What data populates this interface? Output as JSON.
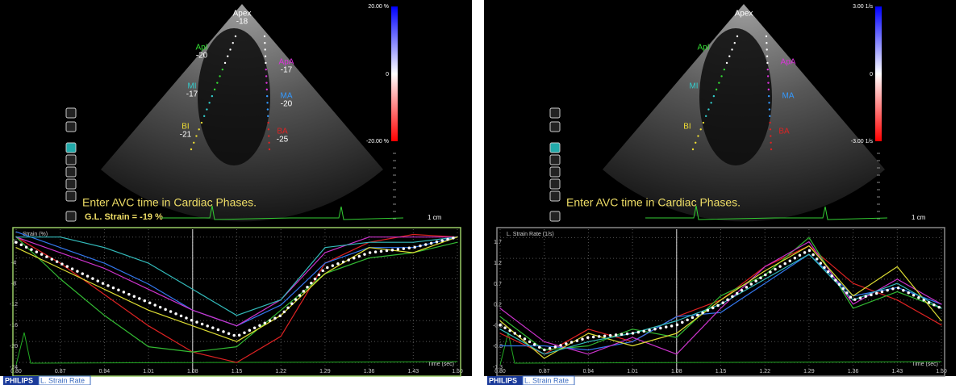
{
  "panels": [
    {
      "segments": [
        {
          "name": "Apex",
          "value": -18,
          "color": "#ffffff"
        },
        {
          "name": "ApI",
          "value": -20,
          "color": "#33dd33"
        },
        {
          "name": "ApA",
          "value": -17,
          "color": "#dd33dd"
        },
        {
          "name": "MI",
          "value": -17,
          "color": "#33cccc"
        },
        {
          "name": "MA",
          "value": -20,
          "color": "#3399ff"
        },
        {
          "name": "BI",
          "value": -21,
          "color": "#eedd33"
        },
        {
          "name": "BA",
          "value": -25,
          "color": "#dd2222"
        }
      ],
      "colorbar": {
        "max": "20.00 %",
        "mid": "0",
        "min": "-20.00 %"
      },
      "message": "Enter AVC time in Cardiac Phases.",
      "strain": "G.L. Strain = -19 %",
      "scale": "1 cm",
      "chart": {
        "type": "line",
        "y_label": "Strain (%)",
        "x_label": "Time (sec)",
        "frame": "#99cc66",
        "xlim": [
          0.8,
          1.5
        ],
        "ylim": [
          -26,
          1.5
        ],
        "xticks": [
          {
            "value": 0.8,
            "label": "0.80"
          },
          0.87,
          0.94,
          1.01,
          1.08,
          1.15,
          1.22,
          1.29,
          1.36,
          1.43,
          {
            "value": 1.5,
            "label": "1.50"
          }
        ],
        "yticks": [
          0,
          -4,
          -8,
          -12,
          -16,
          -20,
          -24
        ],
        "grid": true,
        "cursor": 1.08,
        "x": [
          0.8,
          0.87,
          0.94,
          1.01,
          1.08,
          1.15,
          1.22,
          1.29,
          1.36,
          1.43,
          1.5
        ],
        "series": [
          {
            "color": "#dd2222",
            "values": [
              0,
              -5,
              -11,
              -17,
              -22,
              -24,
              -19,
              -5,
              -1,
              0.5,
              0
            ]
          },
          {
            "color": "#33bb33",
            "values": [
              0,
              -8,
              -15,
              -21,
              -22,
              -21,
              -14,
              -7,
              -4,
              -3,
              -1
            ]
          },
          {
            "color": "#3377ee",
            "values": [
              1,
              -2,
              -5,
              -9,
              -14,
              -17,
              -13,
              -5,
              -2,
              -2,
              0
            ]
          },
          {
            "color": "#cc33cc",
            "values": [
              0,
              -3,
              -6,
              -10,
              -14,
              -17,
              -12,
              -3,
              0,
              0,
              0
            ]
          },
          {
            "color": "#33bbbb",
            "values": [
              0,
              0,
              -2,
              -5,
              -10,
              -15,
              -12,
              -2,
              -1,
              -1,
              0
            ]
          },
          {
            "color": "#dddd33",
            "values": [
              -2,
              -6,
              -10,
              -14,
              -17,
              -20,
              -15,
              -7,
              -2,
              -3,
              0
            ]
          },
          {
            "color": "#ffffff",
            "style": "dotted",
            "values": [
              -1,
              -5,
              -9,
              -12.5,
              -16,
              -19,
              -15,
              -6,
              -3,
              -2,
              0
            ]
          }
        ]
      },
      "footer": {
        "brand": "PHILIPS",
        "mode": "L. Strain Rate"
      }
    },
    {
      "segments": [
        {
          "name": "Apex",
          "color": "#ffffff"
        },
        {
          "name": "ApI",
          "color": "#33dd33"
        },
        {
          "name": "ApA",
          "color": "#dd33dd"
        },
        {
          "name": "MI",
          "color": "#33cccc"
        },
        {
          "name": "MA",
          "color": "#3399ff"
        },
        {
          "name": "BI",
          "color": "#eedd33"
        },
        {
          "name": "BA",
          "color": "#dd2222"
        }
      ],
      "colorbar": {
        "max": "3.00 1/s",
        "mid": "0",
        "min": "-3.00 1/s"
      },
      "message": "Enter AVC time in Cardiac Phases.",
      "scale": "1 cm",
      "chart": {
        "type": "line",
        "y_label": "L. Strain Rate (1/s)",
        "x_label": "Time (sec)",
        "frame": "#888888",
        "xlim": [
          0.8,
          1.5
        ],
        "ylim": [
          -1.55,
          1.9
        ],
        "xticks": [
          {
            "value": 0.8,
            "label": "0.80"
          },
          0.87,
          0.94,
          1.01,
          1.08,
          1.15,
          1.22,
          1.29,
          1.36,
          1.43,
          {
            "value": 1.5,
            "label": "1.50"
          }
        ],
        "yticks": [
          1.7,
          1.2,
          0.7,
          0.2,
          -0.3,
          -0.8,
          -1.3
        ],
        "grid": true,
        "cursor": 1.08,
        "x": [
          0.8,
          0.87,
          0.94,
          1.01,
          1.08,
          1.15,
          1.22,
          1.29,
          1.36,
          1.43,
          1.5
        ],
        "series": [
          {
            "color": "#dd2222",
            "values": [
              -0.6,
              -1.1,
              -0.5,
              -0.8,
              -0.2,
              0.2,
              1.0,
              1.5,
              0.6,
              0.2,
              -0.4
            ]
          },
          {
            "color": "#33bb33",
            "values": [
              -0.2,
              -1.0,
              -0.9,
              -0.5,
              -0.7,
              0.3,
              0.8,
              1.7,
              0.0,
              0.4,
              0.0
            ]
          },
          {
            "color": "#3377ee",
            "values": [
              -0.9,
              -0.9,
              -1.0,
              -0.8,
              -0.2,
              -0.1,
              0.6,
              1.3,
              0.3,
              0.5,
              0.1
            ]
          },
          {
            "color": "#cc33cc",
            "values": [
              0.0,
              -0.8,
              -1.1,
              -0.7,
              -1.1,
              0.0,
              1.0,
              1.6,
              0.1,
              0.7,
              0.1
            ]
          },
          {
            "color": "#dddd33",
            "values": [
              -0.3,
              -1.2,
              -0.6,
              -0.9,
              -0.6,
              0.2,
              0.9,
              1.5,
              0.3,
              1.0,
              -0.3
            ]
          },
          {
            "color": "#33bbbb",
            "values": [
              -0.5,
              -1.1,
              -0.8,
              -0.6,
              -0.3,
              0.1,
              0.7,
              1.3,
              0.2,
              0.6,
              0.0
            ]
          },
          {
            "color": "#ffffff",
            "style": "dotted",
            "values": [
              -0.4,
              -1.0,
              -0.7,
              -0.6,
              -0.4,
              0.1,
              0.8,
              1.4,
              0.2,
              0.5,
              0.0
            ]
          }
        ]
      },
      "footer": {
        "brand": "PHILIPS",
        "mode": "L. Strain Rate"
      }
    }
  ]
}
